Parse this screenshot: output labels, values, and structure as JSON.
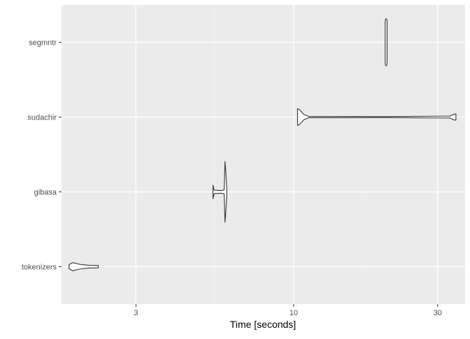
{
  "chart_data": {
    "type": "violin",
    "xlabel": "Time [seconds]",
    "ylabel": "",
    "x_scale": "log10",
    "xlim": [
      1.7,
      37
    ],
    "x_ticks": [
      3,
      10,
      30
    ],
    "x_tick_labels": [
      "3",
      "10",
      "30"
    ],
    "categories": [
      "tokenizers",
      "gibasa",
      "sudachir",
      "segmntr"
    ],
    "series": [
      {
        "category": "tokenizers",
        "min": 1.8,
        "max": 2.25,
        "mode": 1.85,
        "profile": [
          [
            1.8,
            0.06
          ],
          [
            1.85,
            0.12
          ],
          [
            1.95,
            0.07
          ],
          [
            2.1,
            0.04
          ],
          [
            2.25,
            0.035
          ]
        ]
      },
      {
        "category": "gibasa",
        "min": 5.4,
        "max": 6.0,
        "mode": 5.92,
        "profile": [
          [
            5.4,
            0.2
          ],
          [
            5.45,
            0.05
          ],
          [
            5.75,
            0.04
          ],
          [
            5.88,
            0.06
          ],
          [
            5.92,
            0.9
          ],
          [
            5.96,
            0.55
          ],
          [
            6.0,
            0.1
          ]
        ]
      },
      {
        "category": "sudachir",
        "min": 10.3,
        "max": 34.5,
        "mode": 10.4,
        "profile": [
          [
            10.3,
            0.25
          ],
          [
            10.45,
            0.22
          ],
          [
            10.8,
            0.08
          ],
          [
            11.2,
            0.02
          ],
          [
            20,
            0.015
          ],
          [
            33,
            0.03
          ],
          [
            34.1,
            0.09
          ],
          [
            34.5,
            0.09
          ]
        ]
      },
      {
        "category": "segmntr",
        "min": 20.1,
        "max": 20.4,
        "mode": 20.25,
        "profile": [
          [
            20.1,
            0.6
          ],
          [
            20.15,
            0.68
          ],
          [
            20.25,
            0.7
          ],
          [
            20.35,
            0.68
          ],
          [
            20.4,
            0.6
          ]
        ]
      }
    ],
    "grid": true,
    "legend": "none",
    "colors": {
      "panel": "#ebebeb",
      "grid_major": "#ffffff",
      "grid_minor": "#f5f5f5",
      "outline": "#333333",
      "tick_text": "#4d4d4d",
      "title_text": "#000000"
    }
  }
}
